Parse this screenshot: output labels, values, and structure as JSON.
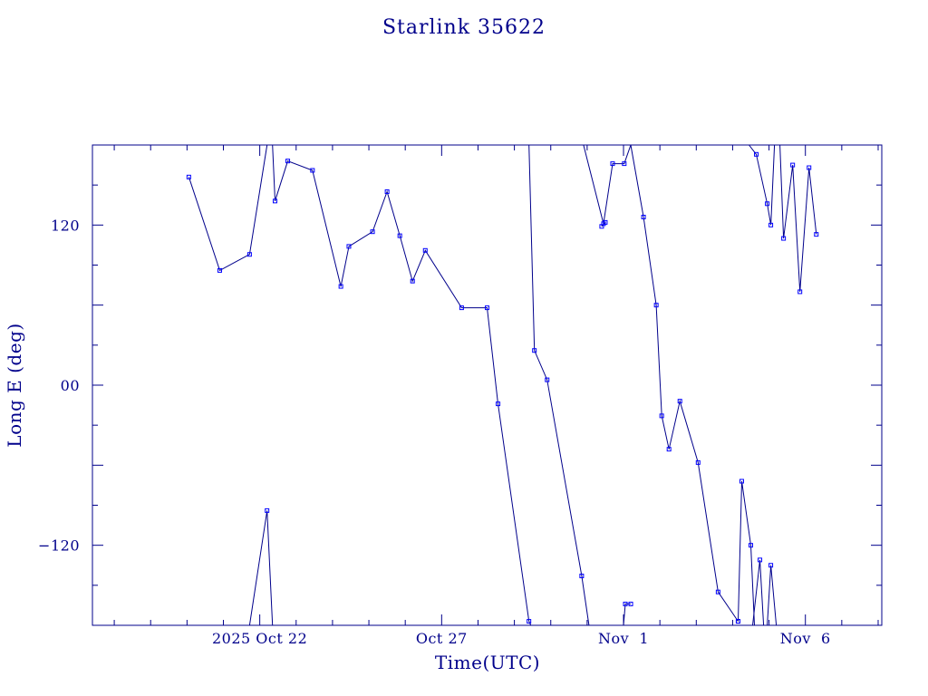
{
  "chart_data": {
    "type": "line",
    "title": "Starlink 35622",
    "xlabel": "Time(UTC)",
    "ylabel": "Long E (deg)",
    "x_unit": "day of Oct 2025 (decimal)",
    "xlim": [
      17.4,
      39.1
    ],
    "ylim": [
      -180,
      180
    ],
    "x_ticks": [
      {
        "x": 22,
        "label": "2025 Oct 22"
      },
      {
        "x": 27,
        "label": "Oct 27"
      },
      {
        "x": 32,
        "label": "Nov  1"
      },
      {
        "x": 37,
        "label": "Nov  6"
      }
    ],
    "y_ticks": [
      {
        "y": 120,
        "label": "120"
      },
      {
        "y": 0,
        "label": "00"
      },
      {
        "y": -120,
        "label": "−120"
      }
    ],
    "grid": false,
    "series": [
      {
        "points": [
          [
            20.05,
            156
          ],
          [
            20.9,
            86
          ],
          [
            21.72,
            98
          ],
          [
            22.2,
            180
          ]
        ]
      },
      {
        "points": [
          [
            21.72,
            -180
          ],
          [
            22.2,
            -94
          ],
          [
            22.35,
            -180
          ]
        ]
      },
      {
        "points": [
          [
            22.35,
            180
          ],
          [
            22.42,
            138
          ],
          [
            22.77,
            168
          ],
          [
            23.45,
            161
          ],
          [
            24.23,
            74
          ],
          [
            24.45,
            104
          ],
          [
            25.1,
            115
          ],
          [
            25.5,
            145
          ],
          [
            25.85,
            112
          ],
          [
            26.2,
            78
          ],
          [
            26.55,
            101
          ],
          [
            27.55,
            58
          ],
          [
            28.25,
            58
          ],
          [
            28.55,
            -14
          ],
          [
            29.4,
            -177
          ],
          [
            29.45,
            -180
          ]
        ]
      },
      {
        "points": [
          [
            29.4,
            180
          ],
          [
            29.55,
            26
          ],
          [
            29.9,
            4
          ],
          [
            30.85,
            -143
          ],
          [
            31.05,
            -180
          ]
        ]
      },
      {
        "points": [
          [
            30.9,
            180
          ],
          [
            31.45,
            121
          ],
          [
            31.7,
            166
          ],
          [
            32.02,
            166
          ],
          [
            32.2,
            180
          ]
        ]
      },
      {
        "points": [
          [
            31.4,
            119
          ],
          [
            31.5,
            122
          ]
        ]
      },
      {
        "points": [
          [
            32.2,
            180
          ],
          [
            32.55,
            126
          ],
          [
            32.9,
            60
          ],
          [
            33.05,
            -23
          ],
          [
            33.25,
            -48
          ],
          [
            33.55,
            -12
          ],
          [
            34.05,
            -58
          ],
          [
            34.6,
            -155
          ],
          [
            35.15,
            -177
          ]
        ]
      },
      {
        "points": [
          [
            32.0,
            -180
          ],
          [
            32.05,
            -164
          ],
          [
            32.2,
            -164
          ]
        ]
      },
      {
        "points": [
          [
            35.15,
            -177
          ],
          [
            35.25,
            -72
          ],
          [
            35.5,
            -120
          ],
          [
            35.6,
            -180
          ]
        ]
      },
      {
        "points": [
          [
            35.55,
            -180
          ],
          [
            35.75,
            -131
          ],
          [
            35.85,
            -180
          ]
        ]
      },
      {
        "points": [
          [
            35.95,
            -180
          ],
          [
            36.05,
            -135
          ],
          [
            36.2,
            -180
          ]
        ]
      },
      {
        "points": [
          [
            35.45,
            180
          ],
          [
            35.65,
            173
          ],
          [
            35.95,
            136
          ],
          [
            36.05,
            120
          ],
          [
            36.15,
            180
          ]
        ]
      },
      {
        "points": [
          [
            36.3,
            180
          ],
          [
            36.4,
            110
          ],
          [
            36.65,
            165
          ],
          [
            36.85,
            70
          ],
          [
            37.1,
            163
          ],
          [
            37.3,
            113
          ]
        ]
      }
    ]
  }
}
